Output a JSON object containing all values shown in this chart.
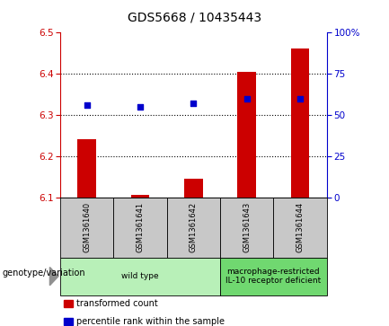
{
  "title": "GDS5668 / 10435443",
  "samples": [
    "GSM1361640",
    "GSM1361641",
    "GSM1361642",
    "GSM1361643",
    "GSM1361644"
  ],
  "transformed_count": [
    6.24,
    6.105,
    6.145,
    6.405,
    6.462
  ],
  "percentile_rank": [
    56,
    55,
    57,
    60,
    60
  ],
  "ylim_left": [
    6.1,
    6.5
  ],
  "ylim_right": [
    0,
    100
  ],
  "yticks_left": [
    6.1,
    6.2,
    6.3,
    6.4,
    6.5
  ],
  "yticks_right": [
    0,
    25,
    50,
    75,
    100
  ],
  "bar_color": "#cc0000",
  "dot_color": "#0000cc",
  "bar_bottom": 6.1,
  "grid_lines": [
    6.2,
    6.3,
    6.4
  ],
  "groups": [
    {
      "label": "wild type",
      "samples": [
        0,
        1,
        2
      ],
      "color": "#b8f0b8"
    },
    {
      "label": "macrophage-restricted\nIL-10 receptor deficient",
      "samples": [
        3,
        4
      ],
      "color": "#70d870"
    }
  ],
  "group_row_label": "genotype/variation",
  "legend_tc": "transformed count",
  "legend_pr": "percentile rank within the sample",
  "background_color": "#ffffff",
  "sample_box_color": "#c8c8c8",
  "title_fontsize": 10,
  "axis_fontsize": 7.5,
  "label_fontsize": 7,
  "sample_fontsize": 6,
  "group_fontsize": 6.5
}
